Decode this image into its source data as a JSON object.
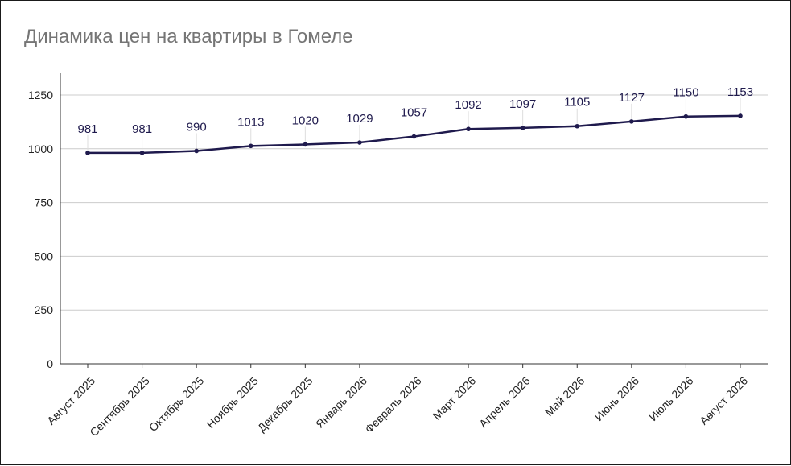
{
  "chart_data": {
    "type": "line",
    "title": "Динамика цен на квартиры в Гомеле",
    "xlabel": "",
    "ylabel": "",
    "categories": [
      "Август 2025",
      "Сентябрь 2025",
      "Октябрь 2025",
      "Ноябрь 2025",
      "Декабрь 2025",
      "Январь 2026",
      "Февраль 2026",
      "Март 2026",
      "Апрель 2026",
      "Май 2026",
      "Июнь 2026",
      "Июль 2026",
      "Август 2026"
    ],
    "series": [
      {
        "values": [
          981,
          981,
          990,
          1013,
          1020,
          1029,
          1057,
          1092,
          1097,
          1105,
          1127,
          1150,
          1153
        ],
        "color": "#1f1a4d"
      }
    ],
    "data_labels": [
      "981",
      "981",
      "990",
      "1013",
      "1020",
      "1029",
      "1057",
      "1092",
      "1097",
      "1105",
      "1127",
      "1150",
      "1153"
    ],
    "yticks": [
      0,
      250,
      500,
      750,
      1000,
      1250
    ],
    "ytick_labels": [
      "0",
      "250",
      "500",
      "750",
      "1000",
      "1250"
    ],
    "ylim": [
      0,
      1250
    ],
    "grid": true,
    "legend": "none"
  }
}
